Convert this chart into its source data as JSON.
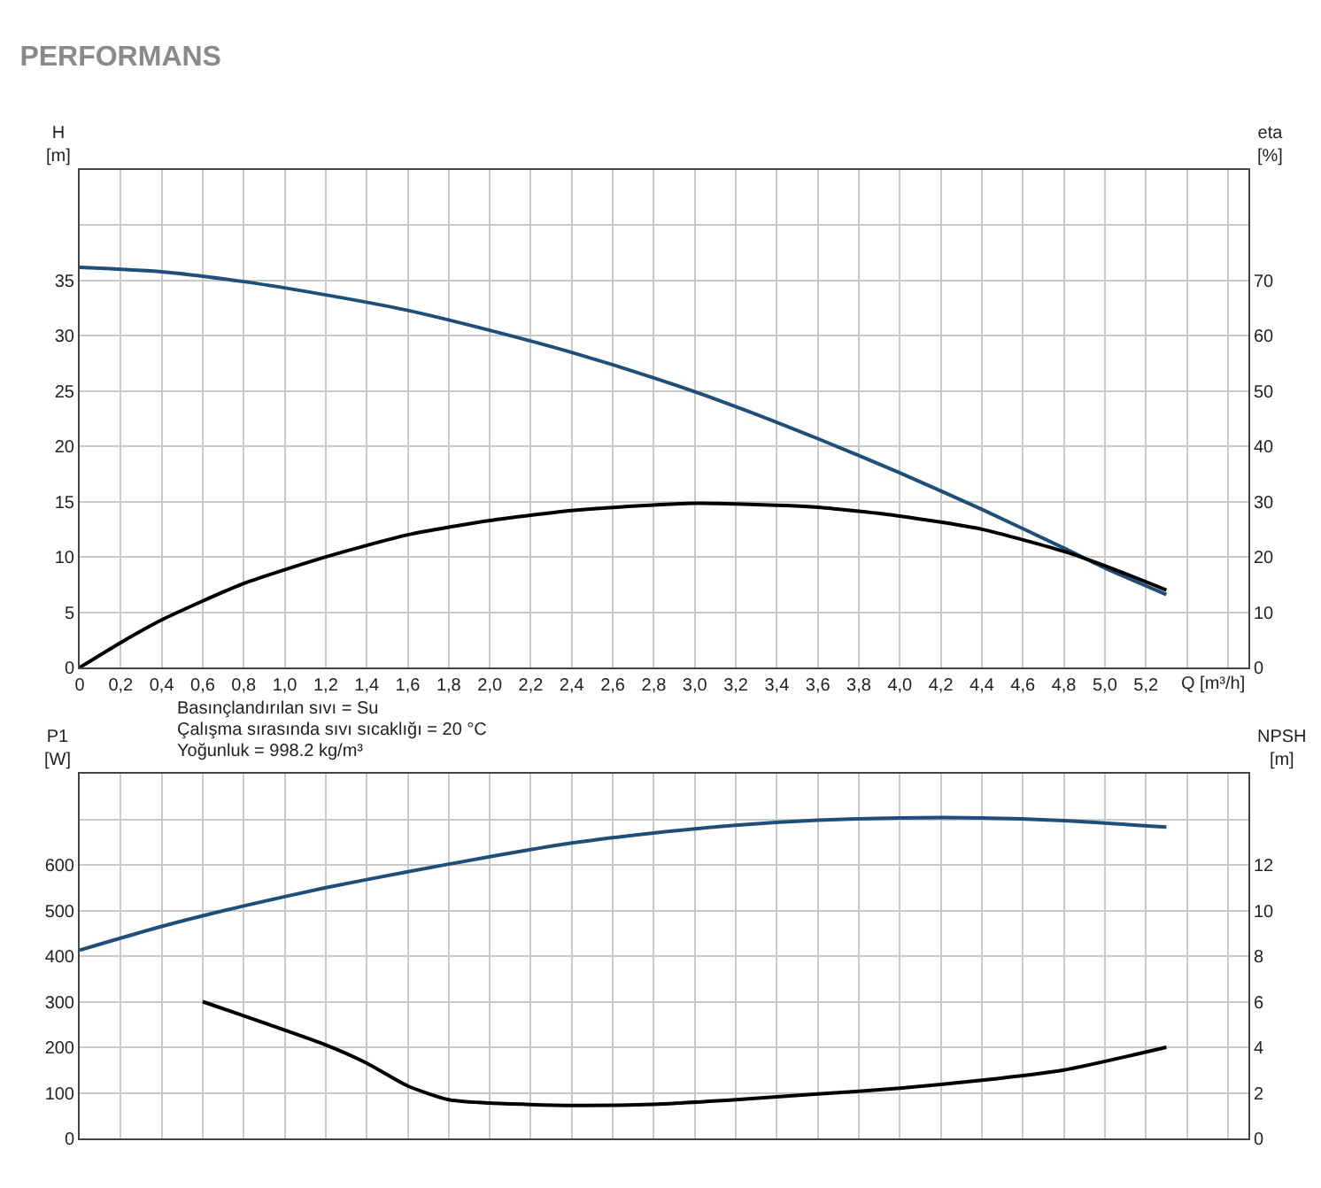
{
  "chart_data": [
    {
      "type": "line",
      "title": "PERFORMANS",
      "ylabel": "H [m]",
      "y2label": "eta [%]",
      "xlabel": "Q [m³/h]",
      "xlim": [
        0,
        5.7
      ],
      "xticks": [
        0,
        {
          "value": 0.2,
          "label": "0,2"
        },
        {
          "value": 0.4,
          "label": "0,4"
        },
        {
          "value": 0.6,
          "label": "0,6"
        },
        {
          "value": 0.8,
          "label": "0,8"
        },
        {
          "value": 1.0,
          "label": "1,0"
        },
        {
          "value": 1.2,
          "label": "1,2"
        },
        {
          "value": 1.4,
          "label": "1,4"
        },
        {
          "value": 1.6,
          "label": "1,6"
        },
        {
          "value": 1.8,
          "label": "1,8"
        },
        {
          "value": 2.0,
          "label": "2,0"
        },
        {
          "value": 2.2,
          "label": "2,2"
        },
        {
          "value": 2.4,
          "label": "2,4"
        },
        {
          "value": 2.6,
          "label": "2,6"
        },
        {
          "value": 2.8,
          "label": "2,8"
        },
        {
          "value": 3.0,
          "label": "3,0"
        },
        {
          "value": 3.2,
          "label": "3,2"
        },
        {
          "value": 3.4,
          "label": "3,4"
        },
        {
          "value": 3.6,
          "label": "3,6"
        },
        {
          "value": 3.8,
          "label": "3,8"
        },
        {
          "value": 4.0,
          "label": "4,0"
        },
        {
          "value": 4.2,
          "label": "4,2"
        },
        {
          "value": 4.4,
          "label": "4,4"
        },
        {
          "value": 4.6,
          "label": "4,6"
        },
        {
          "value": 4.8,
          "label": "4,8"
        },
        {
          "value": 5.0,
          "label": "5,0"
        },
        {
          "value": 5.2,
          "label": "5,2"
        },
        {
          "value": 5.4,
          "label": null
        },
        {
          "value": 5.6,
          "label": null
        }
      ],
      "ylim": [
        0,
        45
      ],
      "yticks": [
        0,
        5,
        10,
        15,
        20,
        25,
        30,
        35,
        {
          "value": 40,
          "label": null
        }
      ],
      "y2lim": [
        0,
        90
      ],
      "y2ticks": [
        0,
        10,
        20,
        30,
        40,
        50,
        60,
        70
      ],
      "grid": true,
      "line_style": "solid",
      "marker": "none",
      "series": [
        {
          "color": "#1f4e79",
          "x": [
            0,
            0.4,
            0.8,
            1.2,
            1.6,
            2.0,
            2.4,
            2.8,
            3.2,
            3.6,
            4.0,
            4.4,
            4.8,
            5.0,
            5.3
          ],
          "values": [
            36.2,
            35.8,
            34.9,
            33.7,
            32.3,
            30.5,
            28.5,
            26.2,
            23.6,
            20.7,
            17.6,
            14.3,
            10.8,
            9.0,
            6.6
          ]
        },
        {
          "color": "#000000",
          "axis": "y2",
          "x": [
            0,
            0.2,
            0.4,
            0.8,
            1.2,
            1.6,
            2.0,
            2.4,
            2.8,
            3.0,
            3.2,
            3.6,
            4.0,
            4.4,
            4.8,
            5.0,
            5.3
          ],
          "values": [
            0,
            4.5,
            8.6,
            15.2,
            20,
            24,
            26.6,
            28.4,
            29.4,
            29.7,
            29.6,
            29,
            27.4,
            25,
            21,
            18.4,
            14
          ]
        }
      ],
      "annotations": [
        "Basınçlandırılan sıvı = Su",
        "Çalışma sırasında sıvı sıcaklığı = 20 °C",
        "Yoğunluk = 998.2 kg/m³"
      ]
    },
    {
      "type": "line",
      "ylabel": "P1 [W]",
      "y2label": "NPSH [m]",
      "tick_labels": "y",
      "xlim": [
        0,
        5.7
      ],
      "xticks": [
        0,
        0.2,
        0.4,
        0.6,
        0.8,
        1.0,
        1.2,
        1.4,
        1.6,
        1.8,
        2.0,
        2.2,
        2.4,
        2.6,
        2.8,
        3.0,
        3.2,
        3.4,
        3.6,
        3.8,
        4.0,
        4.2,
        4.4,
        4.6,
        4.8,
        5.0,
        5.2,
        5.4,
        5.6
      ],
      "ylim": [
        0,
        800
      ],
      "yticks": [
        0,
        100,
        200,
        300,
        400,
        500,
        600,
        {
          "value": 700,
          "label": null
        }
      ],
      "y2lim": [
        0,
        16
      ],
      "y2ticks": [
        0,
        2,
        4,
        6,
        8,
        10,
        12
      ],
      "grid": true,
      "line_style": "solid",
      "marker": "none",
      "series": [
        {
          "color": "#1f4e79",
          "x": [
            0,
            0.4,
            0.8,
            1.2,
            1.6,
            2.0,
            2.4,
            2.8,
            3.2,
            3.6,
            4.0,
            4.4,
            4.8,
            5.3
          ],
          "values": [
            413,
            465,
            510,
            550,
            585,
            618,
            648,
            670,
            687,
            698,
            703,
            703,
            697,
            683
          ]
        },
        {
          "color": "#000000",
          "axis": "y2",
          "x": [
            0.6,
            1.2,
            1.4,
            1.6,
            1.8,
            2.0,
            2.4,
            2.8,
            3.2,
            3.6,
            4.0,
            4.4,
            4.8,
            5.3
          ],
          "values": [
            6.0,
            4.1,
            3.3,
            2.3,
            1.7,
            1.55,
            1.45,
            1.5,
            1.7,
            1.95,
            2.2,
            2.55,
            3.0,
            4.0
          ]
        }
      ]
    }
  ]
}
